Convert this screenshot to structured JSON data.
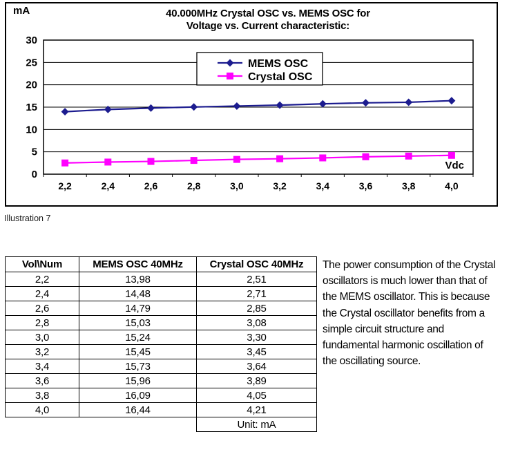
{
  "chart": {
    "title_lines": [
      "40.000MHz Crystal OSC vs. MEMS OSC for",
      "Voltage vs. Current characteristic:"
    ],
    "y_unit_label": "mA",
    "x_unit_label": "Vdc"
  },
  "chart_data": {
    "type": "line",
    "title": "40.000MHz Crystal OSC vs. MEMS OSC for Voltage vs. Current characteristic:",
    "xlabel": "Vdc",
    "ylabel": "mA",
    "categories": [
      "2,2",
      "2,4",
      "2,6",
      "2,8",
      "3,0",
      "3,2",
      "3,4",
      "3,6",
      "3,8",
      "4,0"
    ],
    "x_values": [
      2.2,
      2.4,
      2.6,
      2.8,
      3.0,
      3.2,
      3.4,
      3.6,
      3.8,
      4.0
    ],
    "series": [
      {
        "name": "MEMS OSC",
        "marker": "diamond",
        "color": "#1c1c8f",
        "values": [
          13.98,
          14.48,
          14.79,
          15.03,
          15.24,
          15.45,
          15.73,
          15.96,
          16.09,
          16.44
        ]
      },
      {
        "name": "Crystal OSC",
        "marker": "square",
        "color": "#ff00ff",
        "values": [
          2.51,
          2.71,
          2.85,
          3.08,
          3.3,
          3.45,
          3.64,
          3.89,
          4.05,
          4.21
        ]
      }
    ],
    "ylim": [
      0,
      30
    ],
    "yticks": [
      0,
      5,
      10,
      15,
      20,
      25,
      30
    ],
    "grid": true,
    "legend_position": "top-center"
  },
  "caption": "Illustration 7",
  "table": {
    "headers": [
      "Vol\\Num",
      "MEMS OSC 40MHz",
      "Crystal OSC 40MHz"
    ],
    "rows": [
      [
        "2,2",
        "13,98",
        "2,51"
      ],
      [
        "2,4",
        "14,48",
        "2,71"
      ],
      [
        "2,6",
        "14,79",
        "2,85"
      ],
      [
        "2,8",
        "15,03",
        "3,08"
      ],
      [
        "3,0",
        "15,24",
        "3,30"
      ],
      [
        "3,2",
        "15,45",
        "3,45"
      ],
      [
        "3,4",
        "15,73",
        "3,64"
      ],
      [
        "3,6",
        "15,96",
        "3,89"
      ],
      [
        "3,8",
        "16,09",
        "4,05"
      ],
      [
        "4,0",
        "16,44",
        "4,21"
      ]
    ],
    "footer": "Unit: mA"
  },
  "paragraph": {
    "text": "The power consumption of the Crystal\noscillators is much lower than that of\nthe MEMS oscillator. This is because\nthe Crystal oscillator benefits from a\nsimple circuit structure and\nfundamental harmonic oscillation of\nthe oscillating source."
  }
}
